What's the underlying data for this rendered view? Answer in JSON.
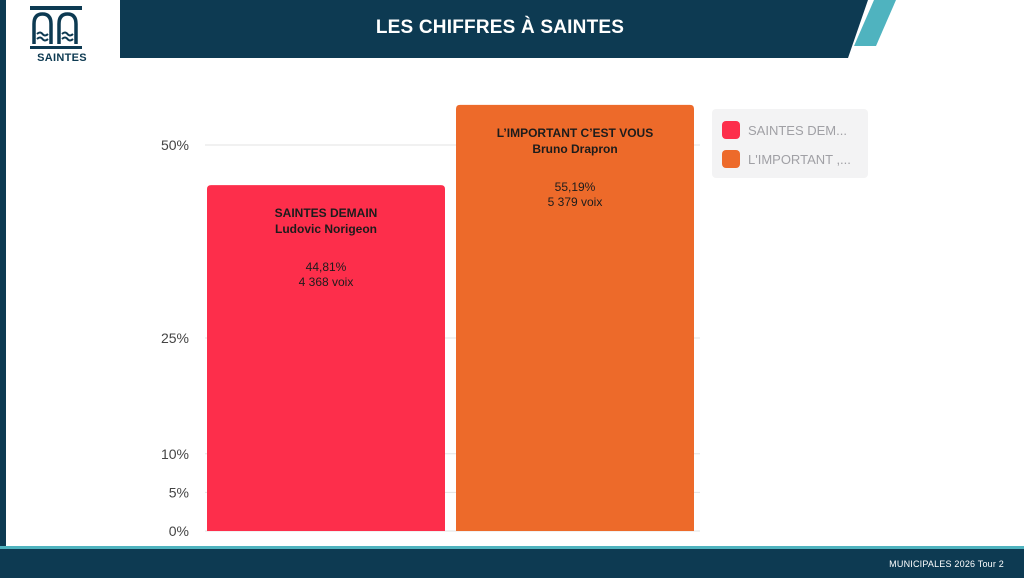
{
  "header": {
    "title": "LES CHIFFRES À SAINTES",
    "logo_text": "SAINTES",
    "colors": {
      "bar": "#0d3a52",
      "accent": "#4fb3bf"
    }
  },
  "footer": {
    "text": "MUNICIPALES 2026 Tour 2"
  },
  "chart_data": {
    "type": "bar",
    "title": "",
    "xlabel": "",
    "ylabel": "",
    "ylim": [
      0,
      60
    ],
    "yticks": [
      {
        "value": 0,
        "label": "0%"
      },
      {
        "value": 5,
        "label": "5%"
      },
      {
        "value": 10,
        "label": "10%"
      },
      {
        "value": 25,
        "label": "25%"
      },
      {
        "value": 50,
        "label": "50%"
      }
    ],
    "grid": true,
    "legend_position": "top-right",
    "categories": [
      "SAINTES DEMAIN",
      "L'IMPORTANT C'EST VOUS"
    ],
    "bars": [
      {
        "list": "SAINTES DEMAIN",
        "candidate": "Ludovic Norigeon",
        "value": 44.81,
        "percent_label": "44,81%",
        "votes_label": "4 368 voix",
        "color": "#fd2e4b"
      },
      {
        "list": "L’IMPORTANT C’EST VOUS",
        "candidate": "Bruno Drapron",
        "value": 55.19,
        "percent_label": "55,19%",
        "votes_label": "5 379 voix",
        "color": "#ed6a2a"
      }
    ],
    "legend": [
      {
        "label": "SAINTES DEM...",
        "color": "#fd2e4b"
      },
      {
        "label": "L'IMPORTANT ,...",
        "color": "#ed6a2a"
      }
    ]
  }
}
